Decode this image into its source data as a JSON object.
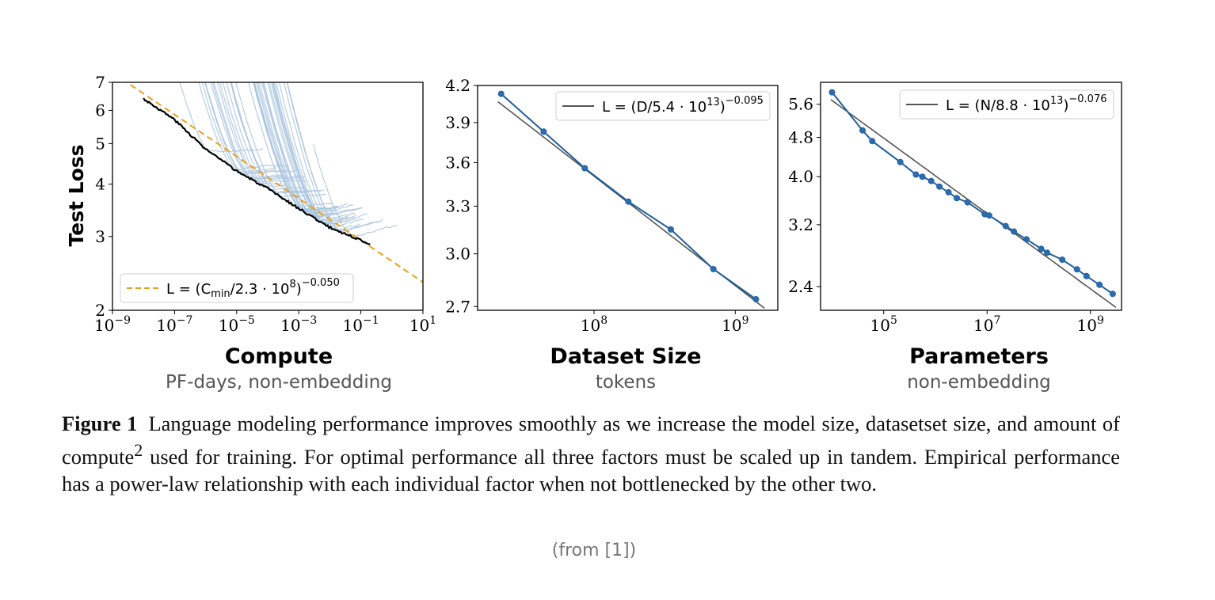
{
  "chart_data": [
    {
      "type": "line",
      "panel": "compute",
      "ylabel": "Test Loss",
      "xlabel": "Compute",
      "xsublabel": "PF-days, non-embedding",
      "x_scale": "log",
      "y_scale": "log",
      "xlim": [
        1e-09,
        10
      ],
      "ylim": [
        2,
        7
      ],
      "x_ticks": [
        {
          "v": 1e-09,
          "base": "10",
          "exp": "−9"
        },
        {
          "v": 1e-07,
          "base": "10",
          "exp": "−7"
        },
        {
          "v": 1e-05,
          "base": "10",
          "exp": "−5"
        },
        {
          "v": 0.001,
          "base": "10",
          "exp": "−3"
        },
        {
          "v": 0.1,
          "base": "10",
          "exp": "−1"
        },
        {
          "v": 10,
          "base": "10",
          "exp": "1"
        }
      ],
      "y_ticks": [
        2,
        3,
        4,
        5,
        6,
        7
      ],
      "legend": {
        "position": "lower-left",
        "label_parts": [
          "L = (C",
          "min",
          "/2.3 · 10",
          "8",
          ")",
          "−0.050"
        ]
      },
      "series": [
        {
          "role": "fit",
          "style": "dashed",
          "equation": {
            "a": 230000000.0,
            "exp": -0.05
          }
        },
        {
          "role": "frontier",
          "points": [
            [
              1e-08,
              6.4
            ],
            [
              1e-07,
              5.7
            ],
            [
              1e-06,
              4.85
            ],
            [
              1e-05,
              4.3
            ],
            [
              0.0001,
              3.9
            ],
            [
              0.001,
              3.5
            ],
            [
              0.01,
              3.15
            ],
            [
              0.2,
              2.88
            ]
          ]
        },
        {
          "role": "individual-runs",
          "count": 40
        }
      ]
    },
    {
      "type": "line",
      "panel": "dataset",
      "xlabel": "Dataset Size",
      "xsublabel": "tokens",
      "x_scale": "log",
      "y_scale": "log",
      "xlim": [
        15000000.0,
        2000000000.0
      ],
      "ylim": [
        2.68,
        4.2
      ],
      "x_ticks": [
        {
          "v": 100000000.0,
          "base": "10",
          "exp": "8"
        },
        {
          "v": 1000000000.0,
          "base": "10",
          "exp": "9"
        }
      ],
      "y_ticks": [
        "2.7",
        "3.0",
        "3.3",
        "3.6",
        "3.9",
        "4.2"
      ],
      "legend": {
        "position": "top-right",
        "label_parts": [
          "L = (D/5.4 · 10",
          "13",
          ")",
          "−0.095"
        ]
      },
      "series": [
        {
          "role": "fit",
          "style": "solid",
          "equation": {
            "a": 54000000000000.0,
            "exp": -0.095
          }
        },
        {
          "role": "data",
          "points": [
            [
              22000000.0,
              4.13
            ],
            [
              44000000.0,
              3.83
            ],
            [
              86000000.0,
              3.56
            ],
            [
              175000000.0,
              3.33
            ],
            [
              350000000.0,
              3.15
            ],
            [
              700000000.0,
              2.91
            ],
            [
              1400000000.0,
              2.74
            ]
          ]
        }
      ]
    },
    {
      "type": "line",
      "panel": "parameters",
      "xlabel": "Parameters",
      "xsublabel": "non-embedding",
      "x_scale": "log",
      "y_scale": "log",
      "xlim": [
        6000.0,
        4000000000.0
      ],
      "ylim": [
        2.15,
        6.2
      ],
      "x_ticks": [
        {
          "v": 100000.0,
          "base": "10",
          "exp": "5"
        },
        {
          "v": 10000000.0,
          "base": "10",
          "exp": "7"
        },
        {
          "v": 1000000000.0,
          "base": "10",
          "exp": "9"
        }
      ],
      "y_ticks": [
        "2.4",
        "3.2",
        "4.0",
        "4.8",
        "5.6"
      ],
      "legend": {
        "position": "top-right",
        "label_parts": [
          "L = (N/8.8 · 10",
          "13",
          ")",
          "−0.076"
        ]
      },
      "series": [
        {
          "role": "fit",
          "style": "solid",
          "equation": {
            "a": 88000000000000.0,
            "exp": -0.076
          }
        },
        {
          "role": "data",
          "points": [
            [
              10000.0,
              5.92
            ],
            [
              39000.0,
              4.96
            ],
            [
              60000.0,
              4.72
            ],
            [
              210000.0,
              4.28
            ],
            [
              420000.0,
              4.04
            ],
            [
              560000.0,
              4.0
            ],
            [
              830000.0,
              3.92
            ],
            [
              1200000.0,
              3.82
            ],
            [
              1800000.0,
              3.72
            ],
            [
              2600000.0,
              3.62
            ],
            [
              4200000.0,
              3.55
            ],
            [
              9000000.0,
              3.36
            ],
            [
              11000000.0,
              3.34
            ],
            [
              23000000.0,
              3.18
            ],
            [
              33000000.0,
              3.1
            ],
            [
              58000000.0,
              2.99
            ],
            [
              112000000.0,
              2.86
            ],
            [
              145000000.0,
              2.81
            ],
            [
              285000000.0,
              2.72
            ],
            [
              550000000.0,
              2.6
            ],
            [
              840000000.0,
              2.52
            ],
            [
              1500000000.0,
              2.42
            ],
            [
              2700000000.0,
              2.32
            ]
          ]
        }
      ]
    }
  ],
  "caption": {
    "label": "Figure 1",
    "text_before": "Language modeling performance improves smoothly as we increase the model size, datasetset size, and amount of compute",
    "superscript": "2",
    "text_after": " used for training. For optimal performance all three factors must be scaled up in tandem. Empirical performance has a power-law relationship with each individual factor when not bottlenecked by the other two."
  },
  "credit": "(from [1])",
  "colors": {
    "data": "#1f5f9a",
    "point": "#2b6cb0",
    "fit": "#555555",
    "runs": "#a9c4de",
    "frontier": "#000000",
    "dashed_fit": "#e8a11c"
  }
}
